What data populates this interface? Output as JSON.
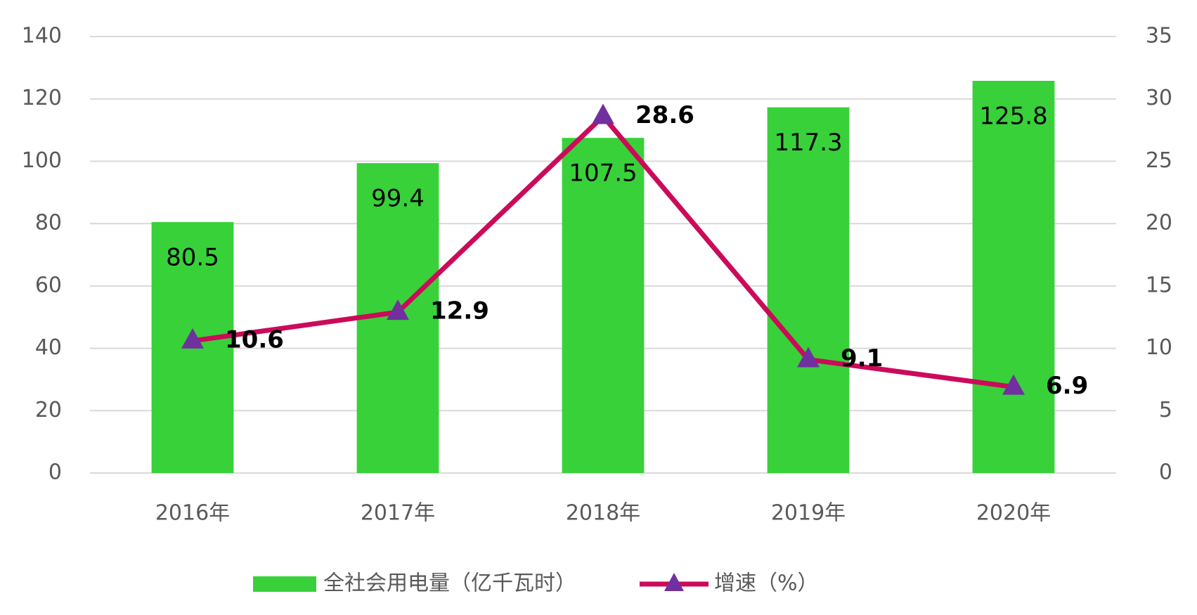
{
  "chart_data": {
    "type": "bar",
    "categories": [
      "2016年",
      "2017年",
      "2018年",
      "2019年",
      "2020年"
    ],
    "series": [
      {
        "name": "全社会用电量（亿千瓦时）",
        "type": "bar",
        "color": "#38d13a",
        "values": [
          80.5,
          99.4,
          107.5,
          117.3,
          125.8
        ]
      },
      {
        "name": "增速（%）",
        "type": "line",
        "axis": "y2",
        "color": "#cc0a5a",
        "marker_color": "#7030a0",
        "values": [
          10.6,
          12.9,
          28.6,
          9.1,
          6.9
        ]
      }
    ],
    "ylim": [
      0,
      140
    ],
    "yticks": [
      0,
      20,
      40,
      60,
      80,
      100,
      120,
      140
    ],
    "y2lim": [
      0,
      35
    ],
    "y2ticks": [
      0,
      5,
      10,
      15,
      20,
      25,
      30,
      35
    ],
    "grid": true
  }
}
